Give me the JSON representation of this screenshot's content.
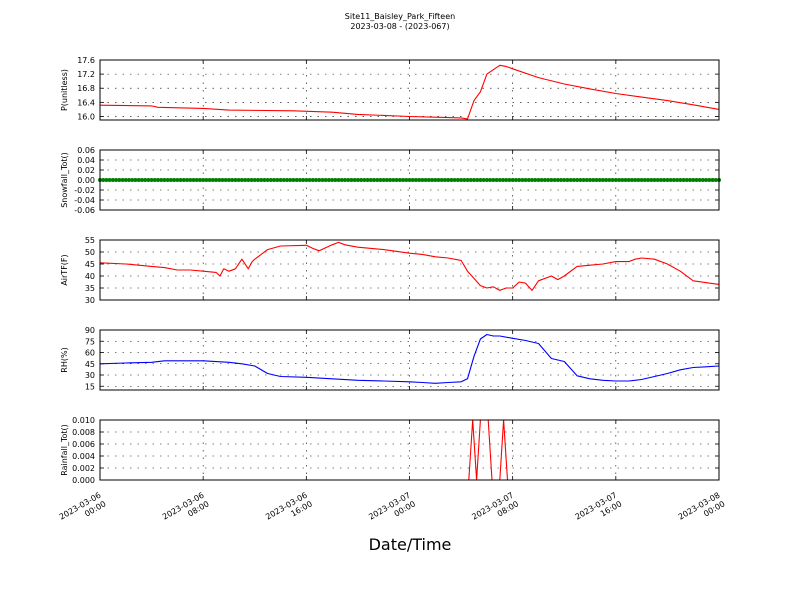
{
  "figure": {
    "title": "Site11_Baisley_Park_Fifteen",
    "subtitle": "2023-03-08 - (2023-067)",
    "xlabel": "Date/Time",
    "x_tick_labels": [
      [
        "2023-03-06",
        "00:00"
      ],
      [
        "2023-03-06",
        "08:00"
      ],
      [
        "2023-03-06",
        "16:00"
      ],
      [
        "2023-03-07",
        "00:00"
      ],
      [
        "2023-03-07",
        "08:00"
      ],
      [
        "2023-03-07",
        "16:00"
      ],
      [
        "2023-03-08",
        "00:00"
      ]
    ]
  },
  "chart_data": [
    {
      "type": "line",
      "ylabel": "P(unitless)",
      "color": "#ff0000",
      "ylim": [
        15.9,
        17.6
      ],
      "y_ticks": [
        "16.0",
        "16.4",
        "16.8",
        "17.2",
        "17.6"
      ],
      "x_hours": [
        0,
        4,
        4.5,
        8,
        10,
        15,
        18,
        20,
        24,
        26,
        28,
        28.5,
        29,
        29.5,
        30,
        31,
        31.5,
        32,
        34,
        36,
        38,
        40,
        42,
        44,
        46,
        48
      ],
      "y": [
        16.32,
        16.3,
        16.26,
        16.23,
        16.18,
        16.16,
        16.12,
        16.06,
        16.0,
        15.98,
        15.96,
        15.93,
        16.45,
        16.7,
        17.2,
        17.45,
        17.42,
        17.35,
        17.1,
        16.92,
        16.78,
        16.65,
        16.55,
        16.45,
        16.33,
        16.2
      ]
    },
    {
      "type": "scatter",
      "ylabel": "Snowfall_Tot()",
      "color": "#008000",
      "ylim": [
        -0.06,
        0.06
      ],
      "y_ticks": [
        "-0.06",
        "-0.04",
        "-0.02",
        "0.00",
        "0.02",
        "0.04",
        "0.06"
      ],
      "constant_value": 0.0,
      "x_range_hours": [
        0,
        48
      ],
      "interval_minutes": 15
    },
    {
      "type": "line",
      "ylabel": "AirTF(F)",
      "color": "#ff0000",
      "ylim": [
        30,
        55
      ],
      "y_ticks": [
        "30",
        "35",
        "40",
        "45",
        "50",
        "55"
      ],
      "x_hours": [
        0,
        2,
        4,
        5,
        6,
        7,
        8,
        9,
        9.3,
        9.6,
        10,
        10.5,
        11,
        11.5,
        11.8,
        12,
        13,
        14,
        16,
        16.5,
        17,
        18,
        18.5,
        19,
        20,
        22,
        24,
        25,
        26,
        27,
        28,
        28.5,
        29,
        29.5,
        30,
        30.5,
        31,
        31.5,
        32,
        32.5,
        33,
        33.5,
        34,
        35,
        35.5,
        36,
        37,
        38,
        39,
        40,
        41,
        41.5,
        42,
        43,
        44,
        45,
        46,
        48
      ],
      "y": [
        45.5,
        45,
        44,
        43.5,
        42.5,
        42.5,
        42,
        41.5,
        40,
        43,
        42,
        43,
        47,
        43,
        46,
        47,
        51,
        52.5,
        52.8,
        51.5,
        50.5,
        53,
        54,
        53,
        52,
        51,
        49.5,
        49,
        48,
        47.5,
        46.5,
        42,
        39,
        36,
        35,
        35.5,
        34,
        35,
        35,
        37.5,
        37,
        34,
        38,
        40,
        38.5,
        40,
        44,
        44.5,
        45,
        46,
        46,
        47,
        47.5,
        47,
        45,
        42,
        38,
        36.5
      ]
    },
    {
      "type": "line",
      "ylabel": "RH(%)",
      "color": "#0000ff",
      "ylim": [
        10,
        90
      ],
      "y_ticks": [
        "15",
        "30",
        "45",
        "60",
        "75",
        "90"
      ],
      "x_hours": [
        0,
        2,
        4,
        5,
        6,
        8,
        10,
        11,
        12,
        13,
        14,
        16,
        18,
        20,
        22,
        24,
        25,
        26,
        27,
        28,
        28.5,
        29,
        29.5,
        30,
        30.5,
        31,
        32,
        33,
        34,
        35,
        36,
        37,
        38,
        39,
        40,
        41,
        42,
        43,
        44,
        45,
        46,
        47,
        48
      ],
      "y": [
        45,
        46,
        47,
        49,
        49,
        49,
        47,
        45,
        42,
        32,
        28,
        27,
        25,
        23,
        22,
        21,
        20,
        19,
        20,
        21,
        25,
        55,
        78,
        84,
        82,
        82,
        79,
        76,
        72,
        52,
        48,
        29,
        25,
        23,
        22,
        22,
        24,
        28,
        32,
        37,
        40,
        41,
        42
      ]
    },
    {
      "type": "line",
      "ylabel": "Rainfall_Tot()",
      "color": "#ff0000",
      "ylim": [
        0,
        0.01
      ],
      "y_ticks": [
        "0.000",
        "0.002",
        "0.004",
        "0.006",
        "0.008",
        "0.010"
      ],
      "x_hours": [
        0,
        28.6,
        28.9,
        29.2,
        29.5,
        29.8,
        30.1,
        30.4,
        31.0,
        31.3,
        31.6,
        48
      ],
      "y": [
        0,
        0,
        0.01,
        0,
        0.01,
        0.01,
        0.01,
        0,
        0,
        0.01,
        0,
        0
      ]
    }
  ]
}
